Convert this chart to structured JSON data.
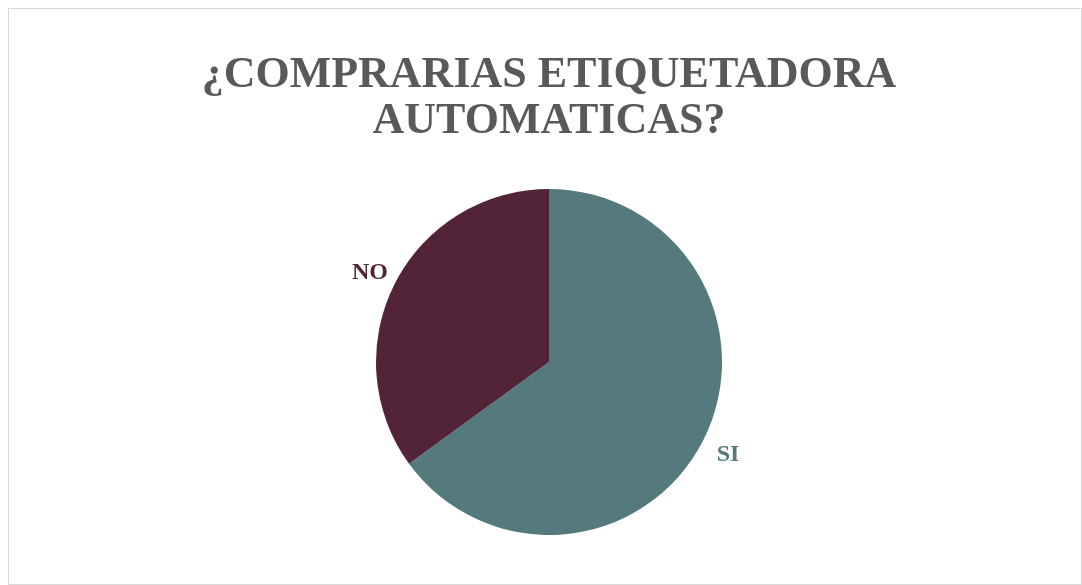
{
  "chart_data": {
    "type": "pie",
    "title": "¿COMPRARIAS ETIQUETADORA AUTOMATICAS?",
    "categories": [
      "SI",
      "NO"
    ],
    "values": [
      65,
      35
    ],
    "colors": [
      "#547a7d",
      "#532437"
    ]
  }
}
